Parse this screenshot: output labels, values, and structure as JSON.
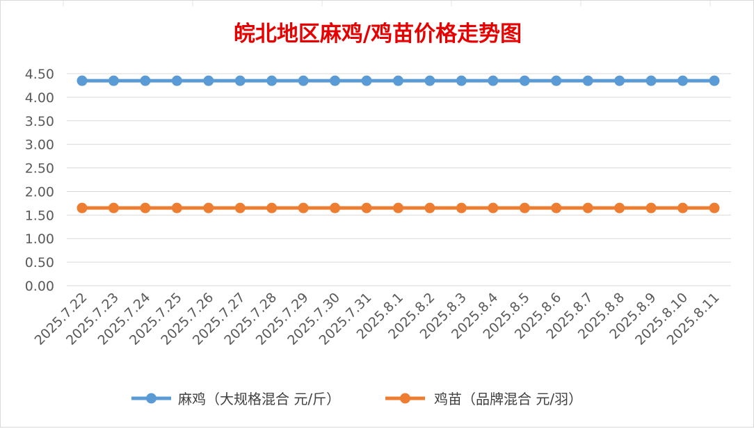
{
  "chart_data": {
    "type": "line",
    "title": "皖北地区麻鸡/鸡苗价格走势图",
    "xlabel": "",
    "ylabel": "",
    "categories": [
      "2025.7.22",
      "2025.7.23",
      "2025.7.24",
      "2025.7.25",
      "2025.7.26",
      "2025.7.27",
      "2025.7.28",
      "2025.7.29",
      "2025.7.30",
      "2025.7.31",
      "2025.8.1",
      "2025.8.2",
      "2025.8.3",
      "2025.8.4",
      "2025.8.5",
      "2025.8.6",
      "2025.8.7",
      "2025.8.8",
      "2025.8.9",
      "2025.8.10",
      "2025.8.11"
    ],
    "ylim": [
      0,
      4.5
    ],
    "yticks": [
      "0.00",
      "0.50",
      "1.00",
      "1.50",
      "2.00",
      "2.50",
      "3.00",
      "3.50",
      "4.00",
      "4.50"
    ],
    "grid": true,
    "legend_position": "bottom",
    "series": [
      {
        "name": "麻鸡（大规格混合 元/斤）",
        "color": "#5b9bd5",
        "values": [
          4.35,
          4.35,
          4.35,
          4.35,
          4.35,
          4.35,
          4.35,
          4.35,
          4.35,
          4.35,
          4.35,
          4.35,
          4.35,
          4.35,
          4.35,
          4.35,
          4.35,
          4.35,
          4.35,
          4.35,
          4.35
        ]
      },
      {
        "name": "鸡苗（品牌混合 元/羽）",
        "color": "#ed7d31",
        "values": [
          1.65,
          1.65,
          1.65,
          1.65,
          1.65,
          1.65,
          1.65,
          1.65,
          1.65,
          1.65,
          1.65,
          1.65,
          1.65,
          1.65,
          1.65,
          1.65,
          1.65,
          1.65,
          1.65,
          1.65,
          1.65
        ]
      }
    ],
    "title_color": "#e60000"
  }
}
